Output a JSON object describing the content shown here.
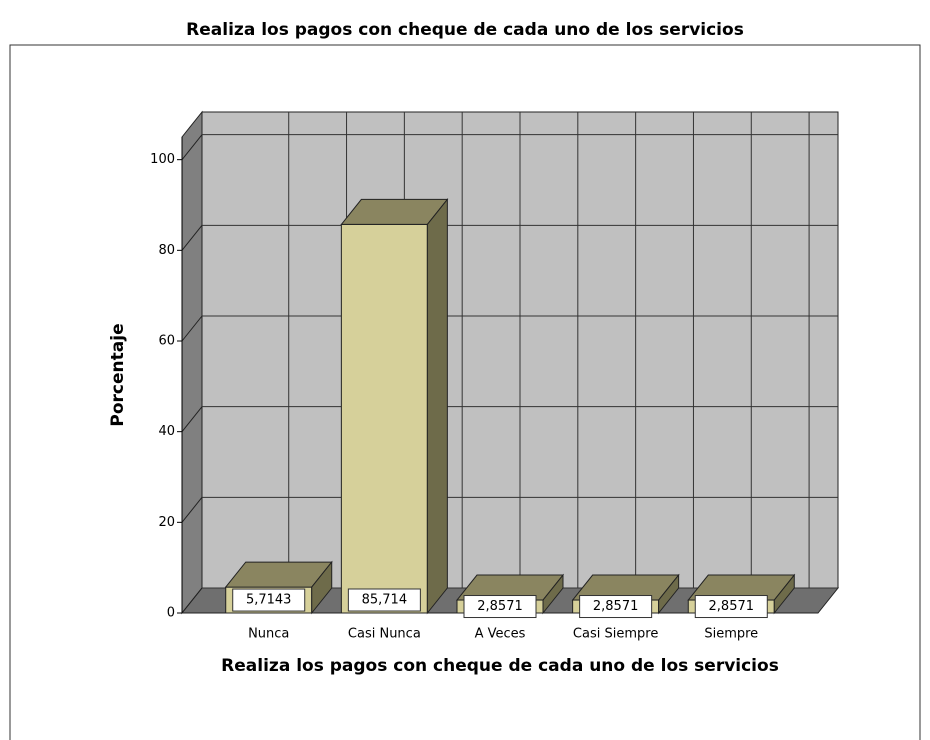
{
  "chart_data": {
    "type": "bar3d",
    "title": "Realiza los pagos con cheque de cada uno de los servicios",
    "x_label": "Realiza los pagos con cheque de cada uno de los servicios",
    "y_label": "Porcentaje",
    "categories": [
      "Nunca",
      "Casi Nunca",
      "A Veces",
      "Casi Siempre",
      "Siempre"
    ],
    "values": [
      5.7143,
      85.714,
      2.8571,
      2.8571,
      2.8571
    ],
    "value_labels": [
      "5,7143",
      "85,714",
      "2,8571",
      "2,8571",
      "2,8571"
    ],
    "color": "#d6d09a",
    "ylim": [
      0,
      105
    ],
    "yticks": [
      0,
      20,
      40,
      60,
      80,
      100
    ],
    "grid": true
  }
}
